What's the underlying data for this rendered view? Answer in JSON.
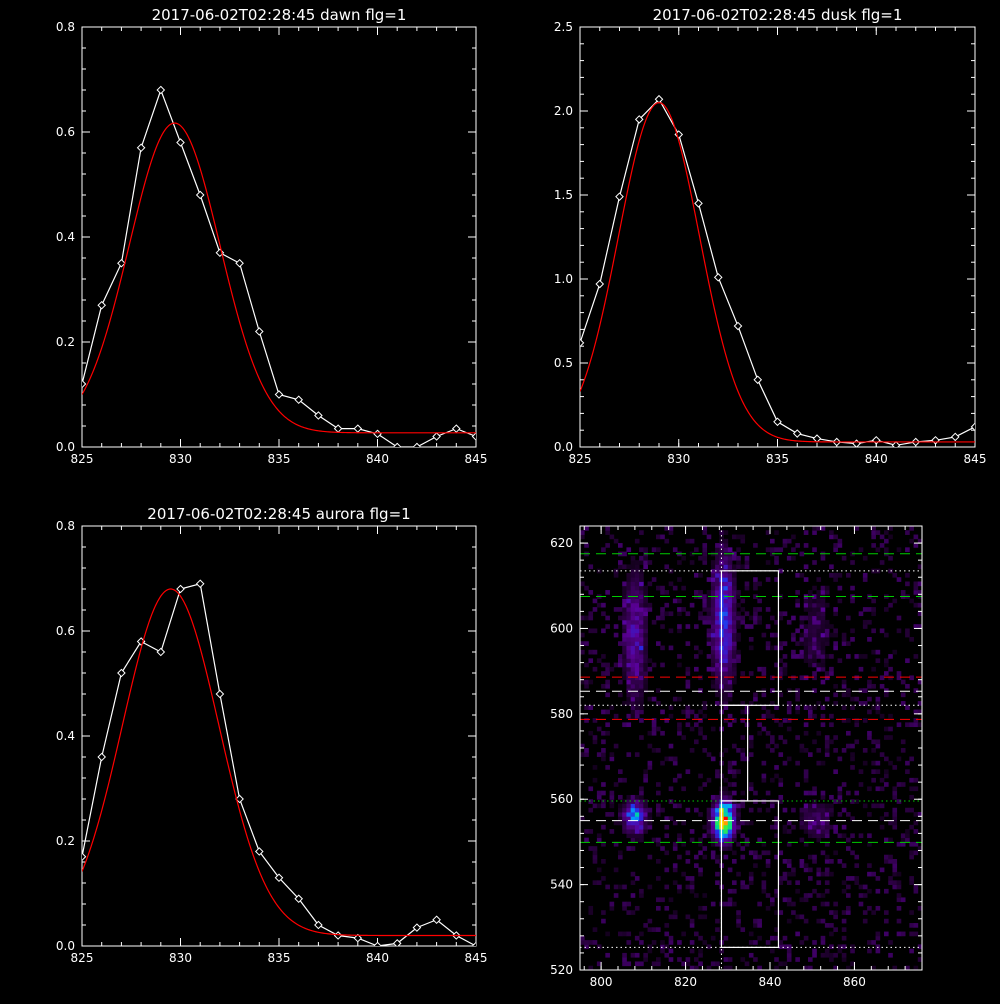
{
  "chart_data": [
    {
      "type": "line",
      "title": "2017-06-02T02:28:45 dawn flg=1",
      "xlim": [
        825,
        845
      ],
      "ylim": [
        0,
        0.8
      ],
      "xticks": [
        "825",
        "830",
        "835",
        "840",
        "845"
      ],
      "yticks": [
        "0.0",
        "0.2",
        "0.4",
        "0.6",
        "0.8"
      ],
      "grid": false,
      "series": [
        {
          "kind": "data",
          "color": "#ffffff",
          "x": [
            825,
            826,
            827,
            828,
            829,
            830,
            831,
            832,
            833,
            834,
            835,
            836,
            837,
            838,
            839,
            840,
            841,
            842,
            843,
            844,
            845
          ],
          "y": [
            0.12,
            0.27,
            0.35,
            0.57,
            0.68,
            0.58,
            0.48,
            0.37,
            0.35,
            0.22,
            0.1,
            0.09,
            0.06,
            0.035,
            0.035,
            0.025,
            0.0,
            0.0,
            0.02,
            0.035,
            0.02
          ]
        },
        {
          "kind": "fit",
          "color": "#ff0000",
          "amp": 0.59,
          "mu": 829.7,
          "sigma": 2.3,
          "base": 0.027
        }
      ]
    },
    {
      "type": "line",
      "title": "2017-06-02T02:28:45 dusk flg=1",
      "xlim": [
        825,
        845
      ],
      "ylim": [
        0,
        2.5
      ],
      "xticks": [
        "825",
        "830",
        "835",
        "840",
        "845"
      ],
      "yticks": [
        "0.0",
        "0.5",
        "1.0",
        "1.5",
        "2.0",
        "2.5"
      ],
      "grid": false,
      "series": [
        {
          "kind": "data",
          "color": "#ffffff",
          "x": [
            825,
            826,
            827,
            828,
            829,
            830,
            831,
            832,
            833,
            834,
            835,
            836,
            837,
            838,
            839,
            840,
            841,
            842,
            843,
            844,
            845
          ],
          "y": [
            0.62,
            0.97,
            1.49,
            1.95,
            2.07,
            1.86,
            1.45,
            1.01,
            0.72,
            0.4,
            0.15,
            0.08,
            0.05,
            0.03,
            0.02,
            0.04,
            0.01,
            0.03,
            0.04,
            0.06,
            0.12
          ]
        },
        {
          "kind": "fit",
          "color": "#ff0000",
          "amp": 2.02,
          "mu": 829.0,
          "sigma": 2.05,
          "base": 0.03
        }
      ]
    },
    {
      "type": "line",
      "title": "2017-06-02T02:28:45 aurora flg=1",
      "xlim": [
        825,
        845
      ],
      "ylim": [
        0,
        0.8
      ],
      "xticks": [
        "825",
        "830",
        "835",
        "840",
        "845"
      ],
      "yticks": [
        "0.0",
        "0.2",
        "0.4",
        "0.6",
        "0.8"
      ],
      "grid": false,
      "series": [
        {
          "kind": "data",
          "color": "#ffffff",
          "x": [
            825,
            826,
            827,
            828,
            829,
            830,
            831,
            832,
            833,
            834,
            835,
            836,
            837,
            838,
            839,
            840,
            841,
            842,
            843,
            844,
            845
          ],
          "y": [
            0.17,
            0.36,
            0.52,
            0.58,
            0.56,
            0.68,
            0.69,
            0.48,
            0.28,
            0.18,
            0.13,
            0.09,
            0.04,
            0.02,
            0.015,
            0.0,
            0.005,
            0.035,
            0.05,
            0.02,
            0.0
          ]
        },
        {
          "kind": "fit",
          "color": "#ff0000",
          "amp": 0.66,
          "mu": 829.5,
          "sigma": 2.45,
          "base": 0.02
        }
      ]
    },
    {
      "type": "heatmap",
      "title": "",
      "xlim": [
        795,
        876
      ],
      "ylim": [
        520,
        624
      ],
      "xticks": [
        "800",
        "820",
        "840",
        "860"
      ],
      "yticks": [
        "520",
        "540",
        "560",
        "580",
        "600",
        "620"
      ],
      "grid": false,
      "blobs": [
        {
          "x": 829,
          "y": 555,
          "sx": 1.6,
          "sy": 3,
          "a": 1.0
        },
        {
          "x": 829,
          "y": 602,
          "sx": 1.8,
          "sy": 10,
          "a": 0.38
        },
        {
          "x": 808,
          "y": 556,
          "sx": 1.8,
          "sy": 2.5,
          "a": 0.45
        },
        {
          "x": 808,
          "y": 598,
          "sx": 1.8,
          "sy": 10,
          "a": 0.27
        },
        {
          "x": 851,
          "y": 555,
          "sx": 2.5,
          "sy": 3,
          "a": 0.16
        },
        {
          "x": 851,
          "y": 600,
          "sx": 3,
          "sy": 9,
          "a": 0.09
        }
      ],
      "lines": {
        "vertical_dotted_x": 828.5,
        "horizontal": [
          {
            "y": 617.5,
            "color": "#00cc00",
            "style": "dashed"
          },
          {
            "y": 613.5,
            "color": "#ffffff",
            "style": "dotted"
          },
          {
            "y": 607.5,
            "color": "#00cc00",
            "style": "dashed"
          },
          {
            "y": 588.6,
            "color": "#ff0000",
            "style": "dashed"
          },
          {
            "y": 585.3,
            "color": "#ffffff",
            "style": "dashed"
          },
          {
            "y": 582.0,
            "color": "#ffffff",
            "style": "dotted"
          },
          {
            "y": 578.7,
            "color": "#ff0000",
            "style": "dashed"
          },
          {
            "y": 559.6,
            "color": "#00cc00",
            "style": "dotted"
          },
          {
            "y": 555.0,
            "color": "#ffffff",
            "style": "dashed"
          },
          {
            "y": 549.9,
            "color": "#00cc00",
            "style": "dashed"
          },
          {
            "y": 525.3,
            "color": "#ffffff",
            "style": "dotted"
          }
        ]
      },
      "boxes": [
        {
          "x0": 828.5,
          "x1": 842.0,
          "y0": 582.0,
          "y1": 613.5
        },
        {
          "x0": 828.5,
          "x1": 834.7,
          "y0": 559.6,
          "y1": 582.0
        },
        {
          "x0": 828.5,
          "x1": 842.0,
          "y0": 525.3,
          "y1": 559.6
        }
      ]
    }
  ]
}
